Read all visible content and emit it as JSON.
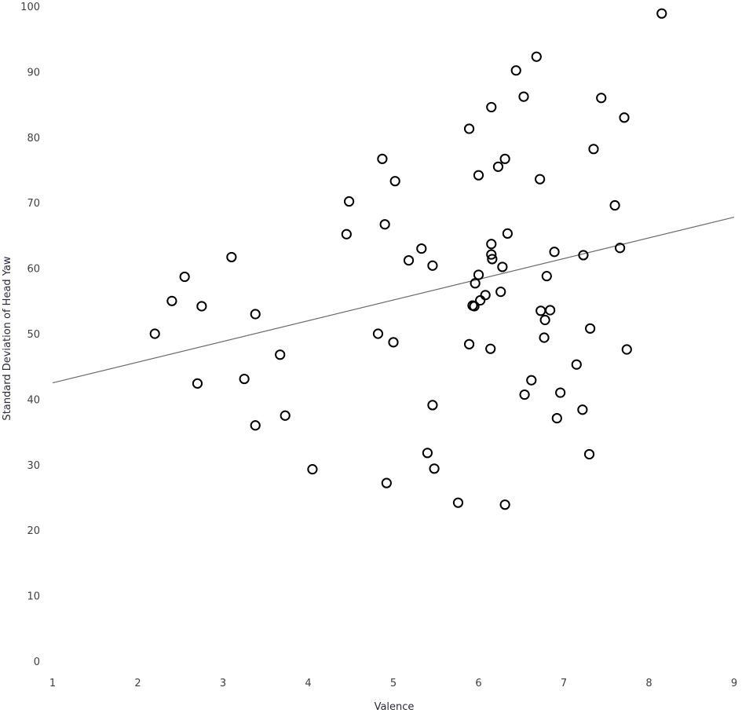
{
  "chart_data": {
    "type": "scatter",
    "title": "",
    "xlabel": "Valence",
    "ylabel": "Standard Deviation of Head Yaw",
    "xlim": [
      1,
      9
    ],
    "ylim": [
      0,
      100
    ],
    "x_ticks": [
      "1",
      "2",
      "3",
      "4",
      "5",
      "6",
      "7",
      "8",
      "9"
    ],
    "y_ticks": [
      "0",
      "10",
      "20",
      "30",
      "40",
      "50",
      "60",
      "70",
      "80",
      "90",
      "100"
    ],
    "grid": false,
    "legend": "none",
    "trendline": {
      "x": [
        1,
        9
      ],
      "y": [
        42.5,
        67.8
      ]
    },
    "points": [
      [
        2.2,
        50.0
      ],
      [
        2.4,
        55.0
      ],
      [
        2.55,
        58.7
      ],
      [
        2.7,
        42.4
      ],
      [
        2.75,
        54.2
      ],
      [
        3.1,
        61.7
      ],
      [
        3.25,
        43.1
      ],
      [
        3.38,
        36.0
      ],
      [
        3.38,
        53.0
      ],
      [
        3.67,
        46.8
      ],
      [
        3.73,
        37.5
      ],
      [
        4.05,
        29.3
      ],
      [
        4.45,
        65.2
      ],
      [
        4.48,
        70.2
      ],
      [
        4.82,
        50.0
      ],
      [
        4.87,
        76.7
      ],
      [
        4.9,
        66.7
      ],
      [
        4.92,
        27.2
      ],
      [
        5.0,
        48.7
      ],
      [
        5.02,
        73.3
      ],
      [
        5.18,
        61.2
      ],
      [
        5.33,
        63.0
      ],
      [
        5.4,
        31.8
      ],
      [
        5.46,
        39.1
      ],
      [
        5.46,
        60.4
      ],
      [
        5.48,
        29.4
      ],
      [
        5.76,
        24.2
      ],
      [
        5.89,
        48.4
      ],
      [
        5.89,
        81.3
      ],
      [
        5.93,
        54.3
      ],
      [
        5.95,
        54.2
      ],
      [
        5.96,
        57.7
      ],
      [
        6.0,
        74.2
      ],
      [
        6.0,
        59.0
      ],
      [
        6.02,
        55.1
      ],
      [
        6.08,
        55.9
      ],
      [
        6.14,
        47.7
      ],
      [
        6.15,
        84.6
      ],
      [
        6.15,
        63.7
      ],
      [
        6.15,
        62.1
      ],
      [
        6.16,
        61.4
      ],
      [
        6.23,
        75.5
      ],
      [
        6.26,
        56.4
      ],
      [
        6.28,
        60.2
      ],
      [
        6.31,
        76.7
      ],
      [
        6.31,
        23.9
      ],
      [
        6.34,
        65.3
      ],
      [
        6.44,
        90.2
      ],
      [
        6.53,
        86.2
      ],
      [
        6.54,
        40.7
      ],
      [
        6.62,
        42.9
      ],
      [
        6.68,
        92.3
      ],
      [
        6.72,
        73.6
      ],
      [
        6.73,
        53.5
      ],
      [
        6.77,
        49.4
      ],
      [
        6.78,
        52.1
      ],
      [
        6.8,
        58.8
      ],
      [
        6.84,
        53.6
      ],
      [
        6.89,
        62.5
      ],
      [
        6.92,
        37.1
      ],
      [
        6.96,
        41.0
      ],
      [
        7.15,
        45.3
      ],
      [
        7.22,
        38.4
      ],
      [
        7.23,
        62.0
      ],
      [
        7.3,
        31.6
      ],
      [
        7.31,
        50.8
      ],
      [
        7.35,
        78.2
      ],
      [
        7.44,
        86.0
      ],
      [
        7.6,
        69.6
      ],
      [
        7.66,
        63.1
      ],
      [
        7.71,
        83.0
      ],
      [
        7.74,
        47.6
      ],
      [
        8.15,
        98.9
      ]
    ]
  }
}
